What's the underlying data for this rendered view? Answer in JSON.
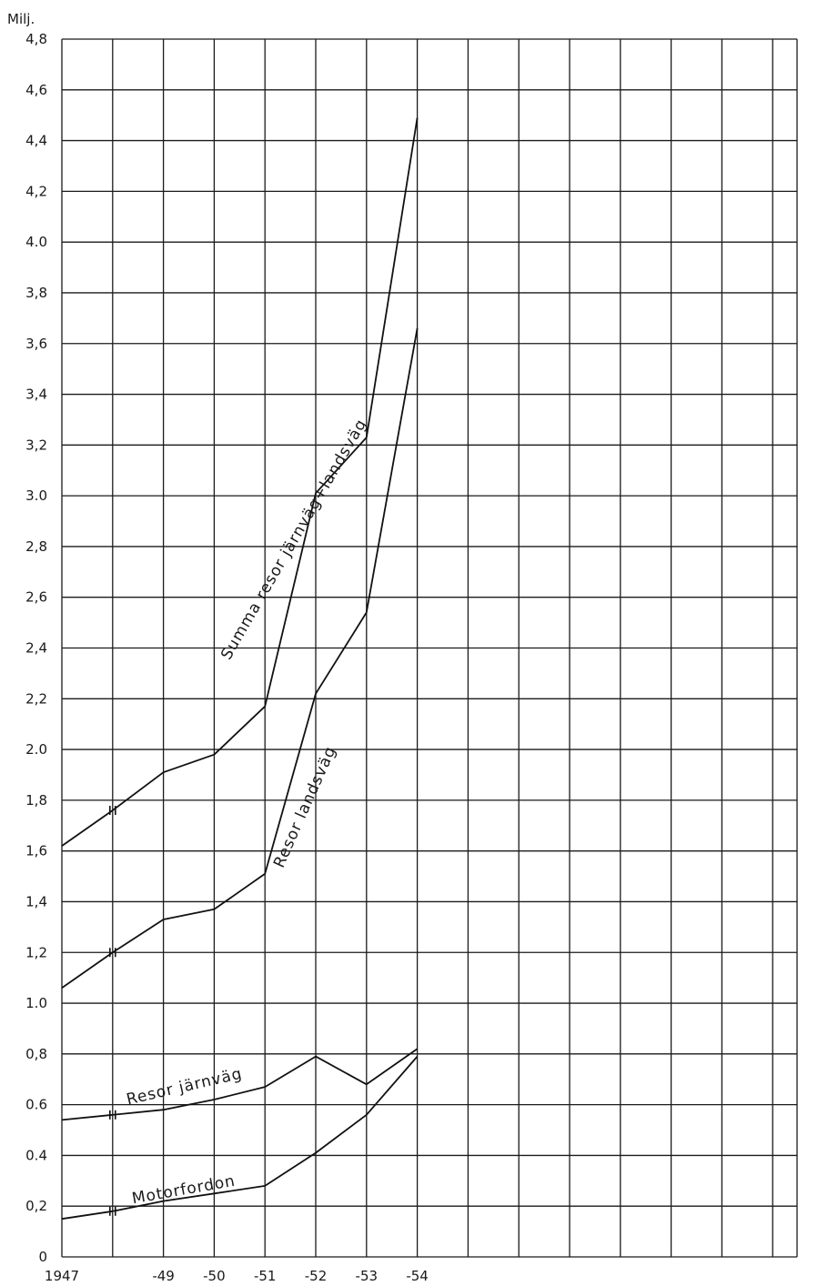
{
  "chart_data": {
    "type": "line",
    "title": "",
    "unit_label": "Milj.",
    "xlabel": "",
    "ylabel": "",
    "x_ticks": [
      "1947",
      "-49",
      "-50",
      "-51",
      "-52",
      "-53",
      "-54"
    ],
    "x_tick_values": [
      1947,
      1949,
      1950,
      1951,
      1952,
      1953,
      1954
    ],
    "xlim": [
      1947,
      1961
    ],
    "y_ticks": [
      "0",
      "0,2",
      "0.4",
      "0.6",
      "0,8",
      "1.0",
      "1,2",
      "1,4",
      "1,6",
      "1,8",
      "2.0",
      "2,2",
      "2,4",
      "2,6",
      "2,8",
      "3.0",
      "3,2",
      "3,4",
      "3,6",
      "3,8",
      "4.0",
      "4,2",
      "4,4",
      "4,6",
      "4,8"
    ],
    "ylim": [
      0,
      4.8
    ],
    "grid": true,
    "series": [
      {
        "name": "Summa resor järnväg+landsväg",
        "x": [
          1947,
          1948,
          1949,
          1950,
          1951,
          1952,
          1953,
          1954
        ],
        "y": [
          1.62,
          1.76,
          1.91,
          1.98,
          2.17,
          3.01,
          3.23,
          4.49
        ]
      },
      {
        "name": "Resor landsväg",
        "x": [
          1947,
          1948,
          1949,
          1950,
          1951,
          1952,
          1953,
          1954
        ],
        "y": [
          1.06,
          1.2,
          1.33,
          1.37,
          1.51,
          2.22,
          2.54,
          3.66
        ]
      },
      {
        "name": "Resor järnväg",
        "x": [
          1947,
          1948,
          1949,
          1950,
          1951,
          1952,
          1953,
          1954
        ],
        "y": [
          0.54,
          0.56,
          0.58,
          0.62,
          0.67,
          0.79,
          0.68,
          0.82
        ]
      },
      {
        "name": "Motorfordon",
        "x": [
          1947,
          1948,
          1949,
          1950,
          1951,
          1952,
          1953,
          1954
        ],
        "y": [
          0.15,
          0.18,
          0.22,
          0.25,
          0.28,
          0.41,
          0.56,
          0.79
        ]
      }
    ]
  }
}
